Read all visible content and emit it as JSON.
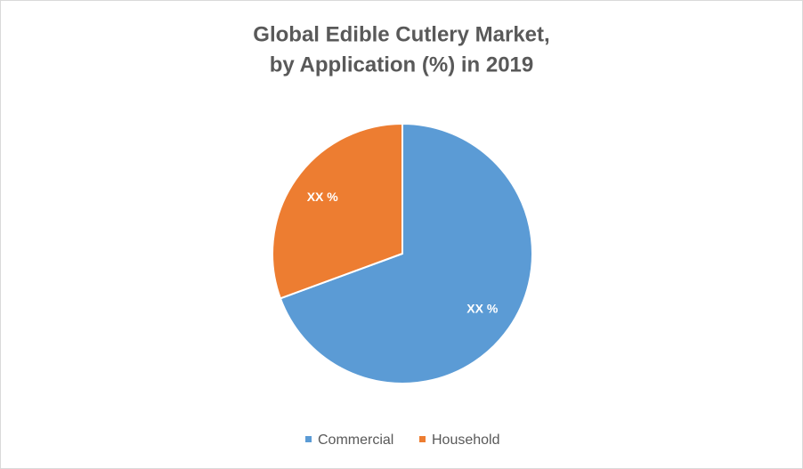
{
  "chart_data": {
    "type": "pie",
    "title": [
      "Global Edible Cutlery Market,",
      "by Application (%) in 2019"
    ],
    "categories": [
      "Commercial",
      "Household"
    ],
    "values": [
      69.4,
      30.6
    ],
    "value_labels": [
      "XX %",
      "XX %"
    ],
    "colors": [
      "#5b9bd5",
      "#ed7d31"
    ],
    "legend": "bottom"
  }
}
